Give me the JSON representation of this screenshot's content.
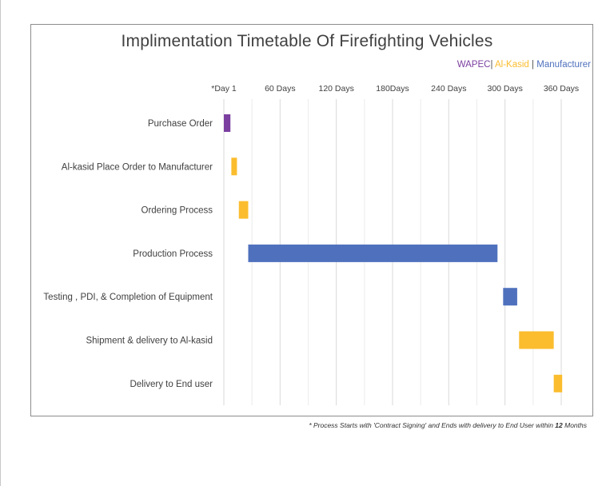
{
  "chart_data": {
    "type": "gantt",
    "title": "Implimentation Timetable Of Firefighting Vehicles",
    "legend": [
      {
        "name": "WAPEC",
        "color": "#7b3fa0"
      },
      {
        "name": "Al-Kasid",
        "color": "#fbbd2e"
      },
      {
        "name": "Manufacturer",
        "color": "#4f71bd"
      }
    ],
    "x_ticks": [
      "*Day 1",
      "60 Days",
      "120 Days",
      "180Days",
      "240 Days",
      "300 Days",
      "360 Days"
    ],
    "xlim": [
      0,
      360
    ],
    "grid": true,
    "tasks": [
      {
        "label": "Purchase Order",
        "start": 0,
        "end": 7,
        "owner": "WAPEC"
      },
      {
        "label": "Al-kasid  Place Order  to Manufacturer",
        "start": 8,
        "end": 14,
        "owner": "Al-Kasid"
      },
      {
        "label": "Ordering Process",
        "start": 16,
        "end": 26,
        "owner": "Al-Kasid"
      },
      {
        "label": "Production Process",
        "start": 26,
        "end": 292,
        "owner": "Manufacturer"
      },
      {
        "label": "Testing , PDI, &  Completion of Equipment",
        "start": 298,
        "end": 313,
        "owner": "Manufacturer"
      },
      {
        "label": "Shipment & delivery to Al-kasid",
        "start": 315,
        "end": 352,
        "owner": "Al-Kasid"
      },
      {
        "label": "Delivery to End user",
        "start": 352,
        "end": 361,
        "owner": "Al-Kasid"
      }
    ]
  },
  "footnote": {
    "prefix": "* Process Starts with 'Contract Signing' and Ends with delivery to End User within ",
    "bold": "12",
    "suffix": " Months"
  }
}
